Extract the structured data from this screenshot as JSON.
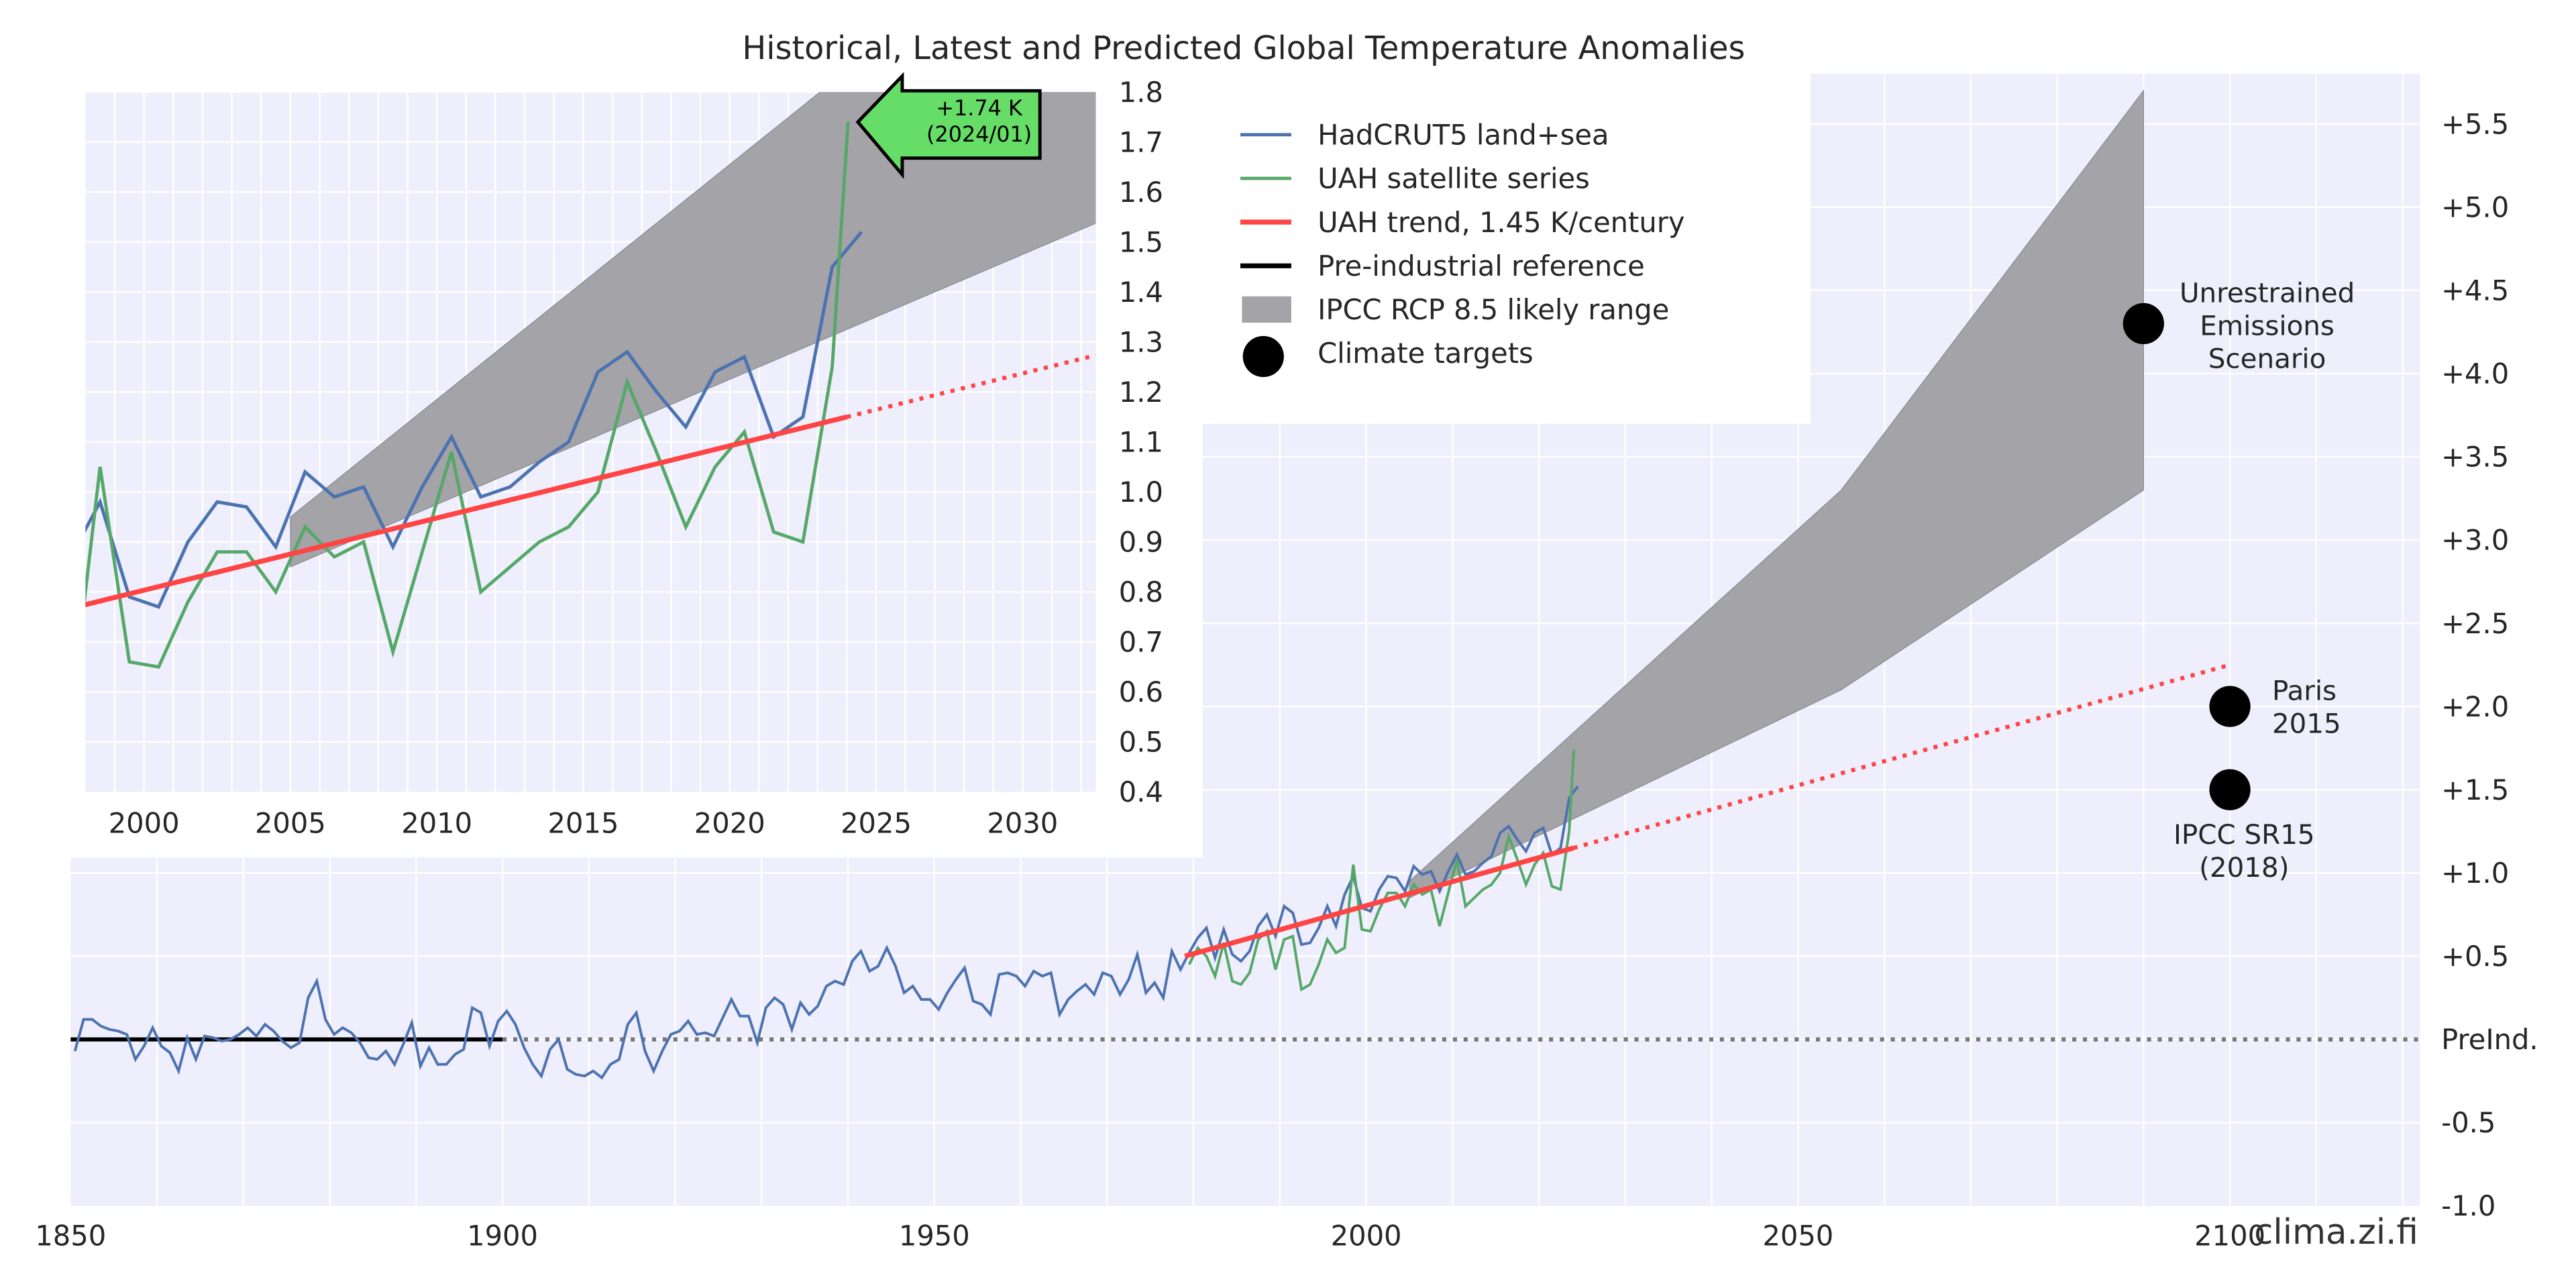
{
  "chart_data": [
    {
      "type": "line",
      "title": "Historical, Latest and Predicted Global Temperature Anomalies",
      "xlim": [
        1850,
        2122
      ],
      "ylim": [
        -1.0,
        5.8
      ],
      "grid": true,
      "x_ticks": [
        1850,
        1900,
        1950,
        2000,
        2050,
        2100
      ],
      "x_tick_labels": [
        "1850",
        "1900",
        "1950",
        "2000",
        "2050",
        "2100"
      ],
      "y_ticks": [
        5.5,
        5.0,
        4.5,
        4.0,
        3.5,
        3.0,
        2.5,
        2.0,
        1.5,
        1.0,
        0.5,
        0,
        -0.5,
        -1.0
      ],
      "y_tick_labels": [
        "+5.5",
        "+5.0",
        "+4.5",
        "+4.0",
        "+3.5",
        "+3.0",
        "+2.5",
        "+2.0",
        "+1.5",
        "+1.0",
        "+0.5",
        "PreInd.",
        "-0.5",
        "-1.0"
      ],
      "y_axis_side": "right",
      "legend": {
        "placement": "top-center",
        "entries": [
          {
            "label": "HadCRUT5 land+sea",
            "kind": "line",
            "color": "#4c72b0"
          },
          {
            "label": "UAH satellite series",
            "kind": "line",
            "color": "#55a868"
          },
          {
            "label": "UAH trend, 1.45 K/century",
            "kind": "line",
            "color": "#ff4444"
          },
          {
            "label": "Pre-industrial reference",
            "kind": "line",
            "color": "#000000"
          },
          {
            "label": "IPCC RCP 8.5 likely range",
            "kind": "patch",
            "color": "#a3a3a8"
          },
          {
            "label": "Climate targets",
            "kind": "marker",
            "color": "#000000"
          }
        ]
      },
      "series": [
        {
          "name": "HadCRUT5 land+sea",
          "color": "#4c72b0",
          "x_start": 1850,
          "values": [
            -0.07,
            0.12,
            0.12,
            0.08,
            0.06,
            0.05,
            0.03,
            -0.12,
            -0.04,
            0.07,
            -0.04,
            -0.08,
            -0.19,
            0.01,
            -0.12,
            0.02,
            0.01,
            -0.01,
            0.0,
            0.03,
            0.07,
            0.02,
            0.09,
            0.05,
            -0.01,
            -0.05,
            -0.02,
            0.25,
            0.35,
            0.12,
            0.03,
            0.07,
            0.04,
            -0.02,
            -0.11,
            -0.12,
            -0.07,
            -0.15,
            -0.03,
            0.1,
            -0.16,
            -0.05,
            -0.15,
            -0.15,
            -0.09,
            -0.06,
            0.19,
            0.16,
            -0.04,
            0.11,
            0.17,
            0.09,
            -0.05,
            -0.15,
            -0.22,
            -0.06,
            0.0,
            -0.18,
            -0.21,
            -0.22,
            -0.19,
            -0.23,
            -0.15,
            -0.12,
            0.09,
            0.16,
            -0.07,
            -0.19,
            -0.07,
            0.03,
            0.05,
            0.11,
            0.03,
            0.04,
            0.02,
            0.13,
            0.24,
            0.14,
            0.14,
            -0.02,
            0.19,
            0.25,
            0.21,
            0.06,
            0.22,
            0.15,
            0.2,
            0.32,
            0.35,
            0.33,
            0.47,
            0.53,
            0.41,
            0.44,
            0.55,
            0.44,
            0.28,
            0.32,
            0.24,
            0.24,
            0.18,
            0.28,
            0.36,
            0.43,
            0.23,
            0.21,
            0.15,
            0.39,
            0.4,
            0.38,
            0.32,
            0.41,
            0.38,
            0.4,
            0.15,
            0.24,
            0.29,
            0.33,
            0.27,
            0.4,
            0.38,
            0.27,
            0.36,
            0.51,
            0.28,
            0.34,
            0.25,
            0.53,
            0.42,
            0.52,
            0.61,
            0.67,
            0.49,
            0.66,
            0.51,
            0.47,
            0.53,
            0.68,
            0.75,
            0.62,
            0.8,
            0.76,
            0.57,
            0.58,
            0.67,
            0.8,
            0.68,
            0.87,
            0.98,
            0.79,
            0.77,
            0.9,
            0.98,
            0.97,
            0.89,
            1.04,
            0.99,
            1.01,
            0.89,
            1.01,
            1.11,
            0.99,
            1.01,
            1.06,
            1.1,
            1.24,
            1.28,
            1.2,
            1.13,
            1.24,
            1.27,
            1.11,
            1.15,
            1.45,
            1.52
          ]
        },
        {
          "name": "UAH satellite series",
          "color": "#55a868",
          "x_start": 1979,
          "values": [
            0.45,
            0.55,
            0.5,
            0.38,
            0.58,
            0.35,
            0.33,
            0.4,
            0.6,
            0.65,
            0.42,
            0.6,
            0.62,
            0.3,
            0.33,
            0.45,
            0.6,
            0.52,
            0.55,
            1.05,
            0.66,
            0.65,
            0.78,
            0.88,
            0.88,
            0.8,
            0.93,
            0.87,
            0.9,
            0.68,
            0.88,
            1.08,
            0.8,
            0.85,
            0.9,
            0.93,
            1.0,
            1.22,
            1.08,
            0.93,
            1.05,
            1.12,
            0.92,
            0.9,
            1.25,
            1.74
          ]
        },
        {
          "name": "UAH trend, 1.45 K/century",
          "color": "#ff4444",
          "solid": {
            "x": [
              1979,
              2024
            ],
            "y": [
              0.5,
              1.15
            ]
          },
          "dotted": {
            "x": [
              2024,
              2100
            ],
            "y": [
              1.15,
              2.25
            ]
          }
        },
        {
          "name": "Pre-industrial reference",
          "color": "#000000",
          "solid": {
            "x": [
              1850,
              1900
            ],
            "y": [
              0,
              0
            ]
          },
          "dotted": {
            "x": [
              1900,
              2122
            ],
            "y": [
              0,
              0
            ]
          }
        },
        {
          "name": "IPCC RCP 8.5 likely range",
          "type": "area",
          "color": "#a3a3a8",
          "x": [
            2005,
            2055,
            2090
          ],
          "lower": [
            0.85,
            2.1,
            3.3
          ],
          "upper": [
            0.95,
            3.3,
            5.7
          ]
        }
      ],
      "targets": [
        {
          "label_lines": [
            "Unrestrained",
            "Emissions",
            "Scenario"
          ],
          "x": 2090,
          "y": 4.3
        },
        {
          "label_lines": [
            "Paris",
            "2015"
          ],
          "x": 2100,
          "y": 2.0
        },
        {
          "label_lines": [
            "IPCC SR15",
            "(2018)"
          ],
          "x": 2100,
          "y": 1.5
        }
      ],
      "watermark": "clima.zi.fi"
    },
    {
      "type": "line",
      "role": "inset",
      "xlim": [
        1998,
        2032.5
      ],
      "ylim": [
        0.4,
        1.8
      ],
      "grid": true,
      "x_ticks": [
        2000,
        2005,
        2010,
        2015,
        2020,
        2025,
        2030
      ],
      "x_tick_labels": [
        "2000",
        "2005",
        "2010",
        "2015",
        "2020",
        "2025",
        "2030"
      ],
      "y_ticks": [
        1.8,
        1.7,
        1.6,
        1.5,
        1.4,
        1.3,
        1.2,
        1.1,
        1.0,
        0.9,
        0.8,
        0.7,
        0.6,
        0.5,
        0.4
      ],
      "y_tick_labels": [
        "1.8",
        "1.7",
        "1.6",
        "1.5",
        "1.4",
        "1.3",
        "1.2",
        "1.1",
        "1.0",
        "0.9",
        "0.8",
        "0.7",
        "0.6",
        "0.5",
        "0.4"
      ],
      "annotation": {
        "lines": [
          "+1.74 K",
          "(2024/01)"
        ],
        "x": 2024.04,
        "y": 1.74,
        "color": "#66dd66"
      }
    }
  ]
}
